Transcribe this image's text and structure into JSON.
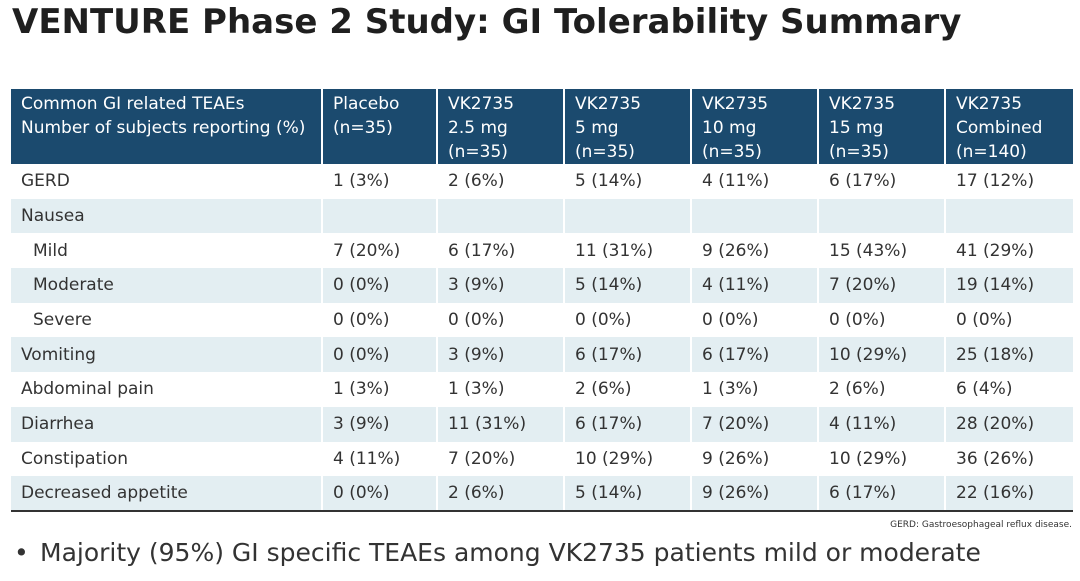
{
  "title": "VENTURE Phase 2 Study: GI Tolerability Summary",
  "table": {
    "headers": [
      [
        "Common GI related TEAEs",
        "Number of subjects reporting (%)"
      ],
      [
        "Placebo",
        "(n=35)"
      ],
      [
        "VK2735",
        "2.5 mg",
        "(n=35)"
      ],
      [
        "VK2735",
        "5 mg",
        "(n=35)"
      ],
      [
        "VK2735",
        "10 mg",
        "(n=35)"
      ],
      [
        "VK2735",
        "15 mg",
        "(n=35)"
      ],
      [
        "VK2735",
        "Combined",
        "(n=140)"
      ]
    ],
    "rows": [
      {
        "label": "GERD",
        "values": [
          "1 (3%)",
          "2 (6%)",
          "5 (14%)",
          "4 (11%)",
          "6 (17%)",
          "17 (12%)"
        ]
      },
      {
        "label": "Nausea",
        "values": [
          "",
          "",
          "",
          "",
          "",
          ""
        ]
      },
      {
        "label": "Mild",
        "values": [
          "7 (20%)",
          "6 (17%)",
          "11 (31%)",
          "9 (26%)",
          "15 (43%)",
          "41 (29%)"
        ]
      },
      {
        "label": "Moderate",
        "values": [
          "0 (0%)",
          "3 (9%)",
          "5 (14%)",
          "4 (11%)",
          "7 (20%)",
          "19 (14%)"
        ]
      },
      {
        "label": "Severe",
        "values": [
          "0 (0%)",
          "0 (0%)",
          "0 (0%)",
          "0 (0%)",
          "0 (0%)",
          "0 (0%)"
        ]
      },
      {
        "label": "Vomiting",
        "values": [
          "0 (0%)",
          "3 (9%)",
          "6 (17%)",
          "6 (17%)",
          "10 (29%)",
          "25 (18%)"
        ]
      },
      {
        "label": "Abdominal pain",
        "values": [
          "1 (3%)",
          "1 (3%)",
          "2 (6%)",
          "1 (3%)",
          "2 (6%)",
          "6 (4%)"
        ]
      },
      {
        "label": "Diarrhea",
        "values": [
          "3 (9%)",
          "11 (31%)",
          "6 (17%)",
          "7 (20%)",
          "4 (11%)",
          "28 (20%)"
        ]
      },
      {
        "label": "Constipation",
        "values": [
          "4 (11%)",
          "7 (20%)",
          "10 (29%)",
          "9 (26%)",
          "10 (29%)",
          "36 (26%)"
        ]
      },
      {
        "label": "Decreased appetite",
        "values": [
          "0 (0%)",
          "2 (6%)",
          "5 (14%)",
          "9 (26%)",
          "6 (17%)",
          "22 (16%)"
        ]
      }
    ]
  },
  "footnote": "GERD: Gastroesophageal reflux disease.",
  "bullet": {
    "marker": "•",
    "text": "Majority (95%) GI specific TEAEs among VK2735 patients mild or moderate"
  },
  "colors": {
    "header_bg": "#1b4a6e",
    "shaded_row": "#e3eef2"
  }
}
